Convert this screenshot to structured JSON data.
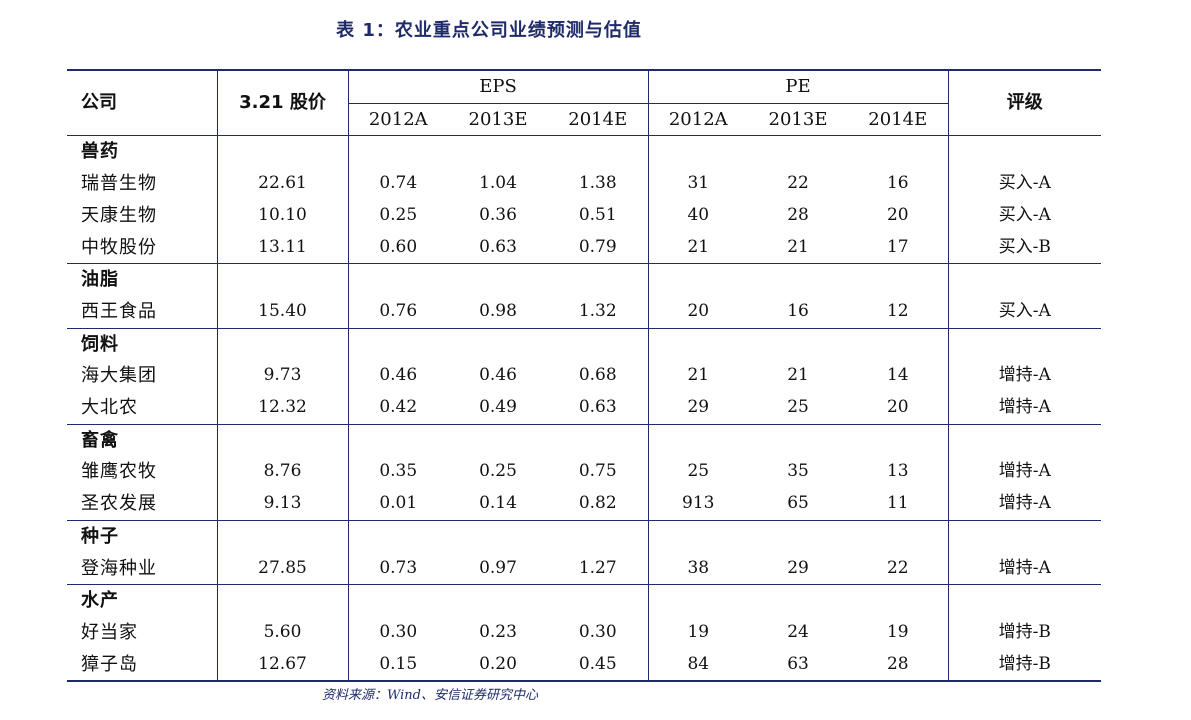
{
  "title": "表 1：农业重点公司业绩预测与估值",
  "header": {
    "company": "公司",
    "price": "3.21 股价",
    "eps": "EPS",
    "pe": "PE",
    "rating": "评级",
    "years": [
      "2012A",
      "2013E",
      "2014E"
    ]
  },
  "groups": [
    {
      "name": "兽药",
      "rows": [
        {
          "company": "瑞普生物",
          "price": "22.61",
          "eps": [
            "0.74",
            "1.04",
            "1.38"
          ],
          "pe": [
            "31",
            "22",
            "16"
          ],
          "rating": "买入-A"
        },
        {
          "company": "天康生物",
          "price": "10.10",
          "eps": [
            "0.25",
            "0.36",
            "0.51"
          ],
          "pe": [
            "40",
            "28",
            "20"
          ],
          "rating": "买入-A"
        },
        {
          "company": "中牧股份",
          "price": "13.11",
          "eps": [
            "0.60",
            "0.63",
            "0.79"
          ],
          "pe": [
            "21",
            "21",
            "17"
          ],
          "rating": "买入-B"
        }
      ]
    },
    {
      "name": "油脂",
      "rows": [
        {
          "company": "西王食品",
          "price": "15.40",
          "eps": [
            "0.76",
            "0.98",
            "1.32"
          ],
          "pe": [
            "20",
            "16",
            "12"
          ],
          "rating": "买入-A"
        }
      ]
    },
    {
      "name": "饲料",
      "rows": [
        {
          "company": "海大集团",
          "price": "9.73",
          "eps": [
            "0.46",
            "0.46",
            "0.68"
          ],
          "pe": [
            "21",
            "21",
            "14"
          ],
          "rating": "增持-A"
        },
        {
          "company": "大北农",
          "price": "12.32",
          "eps": [
            "0.42",
            "0.49",
            "0.63"
          ],
          "pe": [
            "29",
            "25",
            "20"
          ],
          "rating": "增持-A"
        }
      ]
    },
    {
      "name": "畜禽",
      "rows": [
        {
          "company": "雏鹰农牧",
          "price": "8.76",
          "eps": [
            "0.35",
            "0.25",
            "0.75"
          ],
          "pe": [
            "25",
            "35",
            "13"
          ],
          "rating": "增持-A"
        },
        {
          "company": "圣农发展",
          "price": "9.13",
          "eps": [
            "0.01",
            "0.14",
            "0.82"
          ],
          "pe": [
            "913",
            "65",
            "11"
          ],
          "rating": "增持-A"
        }
      ]
    },
    {
      "name": "种子",
      "rows": [
        {
          "company": "登海种业",
          "price": "27.85",
          "eps": [
            "0.73",
            "0.97",
            "1.27"
          ],
          "pe": [
            "38",
            "29",
            "22"
          ],
          "rating": "增持-A"
        }
      ]
    },
    {
      "name": "水产",
      "rows": [
        {
          "company": "好当家",
          "price": "5.60",
          "eps": [
            "0.30",
            "0.23",
            "0.30"
          ],
          "pe": [
            "19",
            "24",
            "19"
          ],
          "rating": "增持-B"
        },
        {
          "company": "獐子岛",
          "price": "12.67",
          "eps": [
            "0.15",
            "0.20",
            "0.45"
          ],
          "pe": [
            "84",
            "63",
            "28"
          ],
          "rating": "增持-B"
        }
      ]
    }
  ],
  "source": "资料来源：Wind、安信证券研究中心",
  "colors": {
    "rule": "#1f2a6b",
    "title": "#1f2a6b",
    "text": "#111111"
  }
}
